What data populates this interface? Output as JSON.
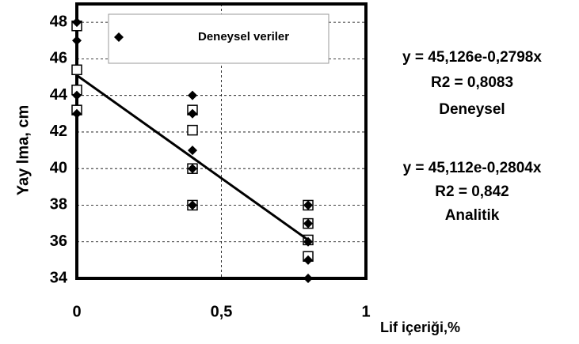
{
  "chart_data": {
    "type": "scatter",
    "xlabel": "Lif içeriği,%",
    "ylabel": "Yay lma, cm",
    "xlim": [
      0,
      1
    ],
    "xticks": [
      0,
      {
        "value": 0.5,
        "label": "0,5"
      },
      1
    ],
    "ylim": [
      34,
      49
    ],
    "yticks": [
      34,
      36,
      38,
      40,
      42,
      44,
      46,
      48
    ],
    "grid": true,
    "legend": "top",
    "series": [
      {
        "marker": "square",
        "color": "#000000",
        "x": [
          0,
          0,
          0,
          0,
          0.4,
          0.4,
          0.4,
          0.4,
          0.8,
          0.8,
          0.8,
          0.8
        ],
        "values": [
          47.8,
          45.4,
          44.3,
          43.2,
          43.2,
          42.1,
          40,
          38,
          38,
          37,
          36.1,
          35.2
        ]
      },
      {
        "name": "Deneysel veriler",
        "marker": "diamond",
        "color": "#000000",
        "x": [
          0,
          0,
          0,
          0,
          0.4,
          0.4,
          0.4,
          0.4,
          0.4,
          0.8,
          0.8,
          0.8,
          0.8,
          0.8
        ],
        "values": [
          48,
          47,
          44,
          43,
          44,
          43,
          41,
          40,
          38,
          38,
          37,
          36,
          35,
          34
        ]
      },
      {
        "marker": "line",
        "color": "#000000",
        "x": [
          0,
          0.8
        ],
        "values": [
          45.1,
          36.1
        ]
      }
    ],
    "annotations": [
      "y = 45,126e-0,2798x",
      "R2 = 0,8083",
      "Deneysel",
      "y = 45,112e-0,2804x",
      "R2 = 0,842",
      "Analitik"
    ]
  }
}
